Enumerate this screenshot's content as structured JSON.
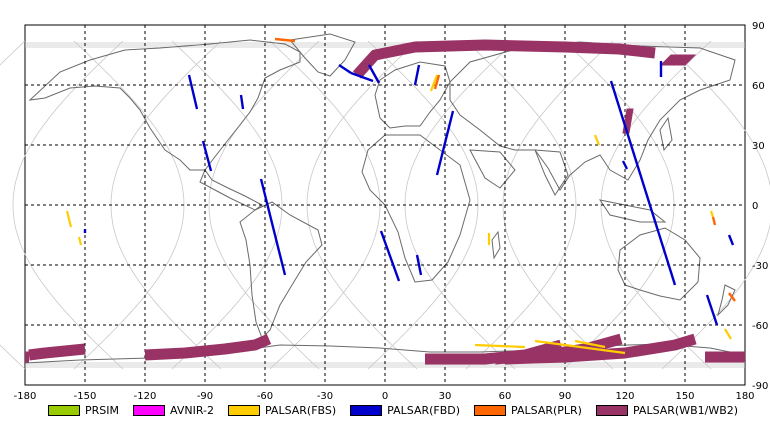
{
  "chart_data": {
    "type": "map",
    "projection": "equirectangular",
    "x_range": [
      -180,
      180
    ],
    "y_range": [
      -90,
      90
    ],
    "grid": true,
    "x_ticks": [
      "-180",
      "-150",
      "-120",
      "-90",
      "-60",
      "-30",
      "0",
      "30",
      "60",
      "90",
      "120",
      "150",
      "180"
    ],
    "y_ticks": [
      "90",
      "60",
      "30",
      "0",
      "-30",
      "-60",
      "-90"
    ],
    "legend": [
      {
        "label": "PRSIM",
        "color": "#99cc00"
      },
      {
        "label": "AVNIR-2",
        "color": "#ff00ff"
      },
      {
        "label": "PALSAR(FBS)",
        "color": "#ffcc00"
      },
      {
        "label": "PALSAR(FBD)",
        "color": "#0000cc"
      },
      {
        "label": "PALSAR(PLR)",
        "color": "#ff6600"
      },
      {
        "label": "PALSAR(WB1/WB2)",
        "color": "#993366"
      }
    ],
    "colors": {
      "coast": "#6a6a6a",
      "orbit": "#c8c8c8",
      "grid": "#000000",
      "fbs": "#ffcc00",
      "fbd": "#0000cc",
      "plr": "#ff6600",
      "wb": "#993366"
    },
    "wb_bands": [
      [
        [
          -14,
          65
        ],
        [
          -5,
          75
        ],
        [
          15,
          79
        ],
        [
          50,
          80
        ],
        [
          90,
          79
        ],
        [
          117,
          78
        ],
        [
          135,
          76
        ]
      ],
      [
        [
          -178,
          -75
        ],
        [
          -170,
          -74
        ],
        [
          -160,
          -73
        ],
        [
          -150,
          -72
        ]
      ],
      [
        [
          -120,
          -75
        ],
        [
          -100,
          -74
        ],
        [
          -80,
          -72
        ],
        [
          -65,
          -70
        ],
        [
          -58,
          -67
        ]
      ],
      [
        [
          20,
          -77
        ],
        [
          50,
          -77
        ],
        [
          70,
          -75
        ],
        [
          88,
          -70
        ]
      ],
      [
        [
          55,
          -77
        ],
        [
          80,
          -75
        ],
        [
          100,
          -72
        ],
        [
          118,
          -67
        ]
      ],
      [
        [
          60,
          -77
        ],
        [
          90,
          -76
        ],
        [
          120,
          -74
        ],
        [
          145,
          -70
        ],
        [
          155,
          -67
        ]
      ],
      [
        [
          160,
          -76
        ],
        [
          180,
          -76
        ]
      ],
      [
        [
          -180,
          -76
        ],
        [
          -178,
          -76
        ]
      ]
    ],
    "fbd_tracks": [
      [
        [
          -98,
          65
        ],
        [
          -94,
          48
        ]
      ],
      [
        [
          -72,
          55
        ],
        [
          -71,
          48
        ]
      ],
      [
        [
          -91,
          32
        ],
        [
          -87,
          17
        ]
      ],
      [
        [
          -62,
          13
        ],
        [
          -50,
          -35
        ]
      ],
      [
        [
          -2,
          -13
        ],
        [
          7,
          -38
        ]
      ],
      [
        [
          34,
          47
        ],
        [
          26,
          15
        ]
      ],
      [
        [
          113,
          62
        ],
        [
          145,
          -40
        ]
      ],
      [
        [
          161,
          -45
        ],
        [
          166,
          -60
        ]
      ],
      [
        [
          -17,
          66
        ],
        [
          -6,
          62
        ]
      ],
      [
        [
          -23,
          70
        ],
        [
          -17,
          66
        ]
      ],
      [
        [
          -8,
          70
        ],
        [
          -3,
          61
        ]
      ],
      [
        [
          17,
          70
        ],
        [
          15,
          60
        ]
      ],
      [
        [
          138,
          72
        ],
        [
          138,
          64
        ]
      ],
      [
        [
          172,
          -15
        ],
        [
          174,
          -20
        ]
      ],
      [
        [
          119,
          22
        ],
        [
          121,
          18
        ]
      ],
      [
        [
          16,
          -25
        ],
        [
          18,
          -35
        ]
      ],
      [
        [
          -150,
          -12
        ],
        [
          -150,
          -14
        ]
      ]
    ],
    "fbs_tracks": [
      [
        [
          -159,
          -3
        ],
        [
          -157,
          -11
        ]
      ],
      [
        [
          -153,
          -16
        ],
        [
          -152,
          -20
        ]
      ],
      [
        [
          105,
          35
        ],
        [
          107,
          30
        ]
      ],
      [
        [
          95,
          -68
        ],
        [
          110,
          -71
        ]
      ],
      [
        [
          45,
          -70
        ],
        [
          70,
          -71
        ]
      ],
      [
        [
          75,
          -68
        ],
        [
          120,
          -74
        ]
      ],
      [
        [
          170,
          -62
        ],
        [
          173,
          -67
        ]
      ],
      [
        [
          163,
          -3
        ],
        [
          164,
          -6
        ]
      ],
      [
        [
          52,
          -14
        ],
        [
          52,
          -20
        ]
      ],
      [
        [
          26,
          65
        ],
        [
          23,
          57
        ]
      ]
    ],
    "plr_tracks": [
      [
        [
          -55,
          83
        ],
        [
          -45,
          82
        ]
      ],
      [
        [
          27,
          65
        ],
        [
          25,
          58
        ]
      ],
      [
        [
          164,
          -6
        ],
        [
          165,
          -10
        ]
      ],
      [
        [
          172,
          -44
        ],
        [
          175,
          -48
        ]
      ]
    ],
    "wb_patches": [
      [
        [
          143,
          75
        ],
        [
          155,
          75
        ],
        [
          150,
          70
        ],
        [
          138,
          70
        ]
      ],
      [
        [
          121,
          48
        ],
        [
          124,
          48
        ],
        [
          122,
          36
        ],
        [
          119,
          36
        ]
      ]
    ]
  }
}
